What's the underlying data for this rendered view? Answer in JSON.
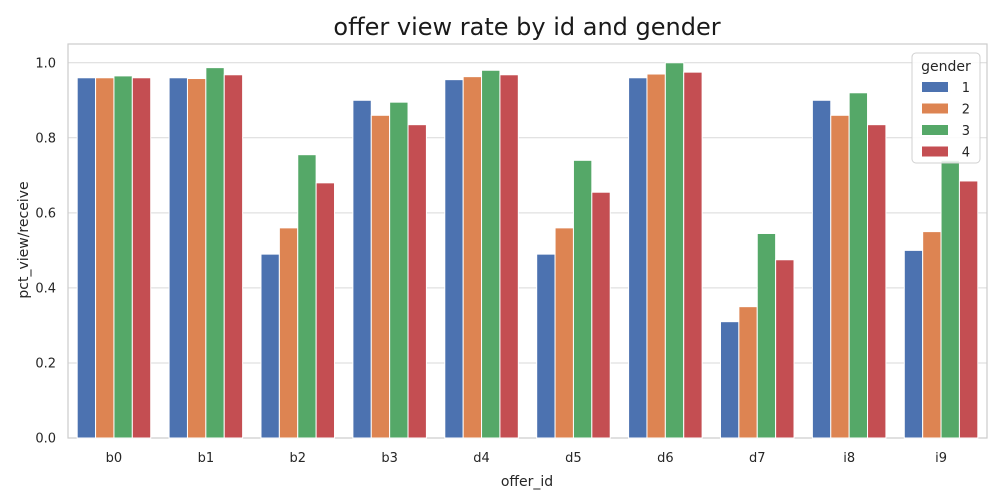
{
  "chart_data": {
    "type": "bar",
    "title": "offer view rate by id and gender",
    "xlabel": "offer_id",
    "ylabel": "pct_view/receive",
    "ylim": [
      0,
      1.05
    ],
    "yticks": [
      "0.0",
      "0.2",
      "0.4",
      "0.6",
      "0.8",
      "1.0"
    ],
    "grid": true,
    "legend": {
      "title": "gender",
      "position": "top-right"
    },
    "categories": [
      "b0",
      "b1",
      "b2",
      "b3",
      "d4",
      "d5",
      "d6",
      "d7",
      "i8",
      "i9"
    ],
    "series": [
      {
        "name": "1",
        "color": "#4c72b0",
        "values": [
          0.96,
          0.96,
          0.49,
          0.9,
          0.955,
          0.49,
          0.96,
          0.31,
          0.9,
          0.5
        ]
      },
      {
        "name": "2",
        "color": "#dd8452",
        "values": [
          0.96,
          0.958,
          0.56,
          0.86,
          0.963,
          0.56,
          0.97,
          0.35,
          0.86,
          0.55
        ]
      },
      {
        "name": "3",
        "color": "#55a868",
        "values": [
          0.965,
          0.987,
          0.755,
          0.895,
          0.98,
          0.74,
          1.0,
          0.545,
          0.92,
          0.74
        ]
      },
      {
        "name": "4",
        "color": "#c44e52",
        "values": [
          0.96,
          0.968,
          0.68,
          0.835,
          0.968,
          0.655,
          0.975,
          0.475,
          0.835,
          0.685
        ]
      }
    ]
  }
}
